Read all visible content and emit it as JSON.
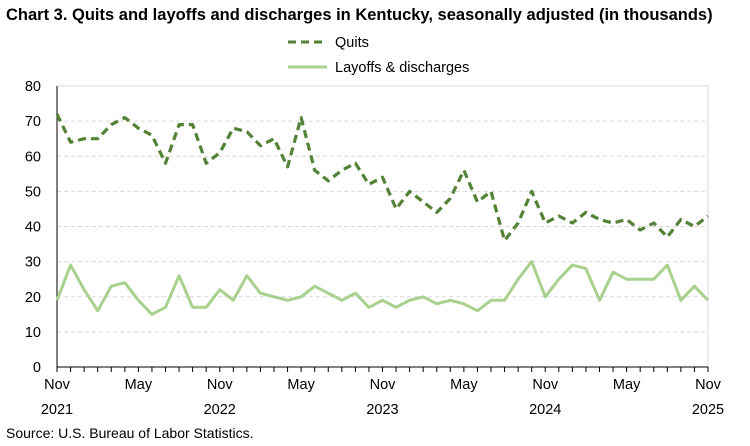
{
  "chart_data": {
    "type": "line",
    "title": "Chart 3. Quits and layoffs and discharges in Kentucky, seasonally adjusted (in thousands)",
    "source": "Source: U.S. Bureau of Labor Statistics.",
    "ylim": [
      0,
      80
    ],
    "yticks": [
      0,
      10,
      20,
      30,
      40,
      50,
      60,
      70,
      80
    ],
    "grid": true,
    "legend_placement": "top-center",
    "x_start": "Nov 2021",
    "x_end": "Nov 2025",
    "xtick_labels": [
      {
        "month": "Nov",
        "year": "2021",
        "index": 0
      },
      {
        "month": "May",
        "year": "",
        "index": 6
      },
      {
        "month": "Nov",
        "year": "2022",
        "index": 12
      },
      {
        "month": "May",
        "year": "",
        "index": 18
      },
      {
        "month": "Nov",
        "year": "2023",
        "index": 24
      },
      {
        "month": "May",
        "year": "",
        "index": 30
      },
      {
        "month": "Nov",
        "year": "2024",
        "index": 36
      },
      {
        "month": "May",
        "year": "",
        "index": 42
      },
      {
        "month": "Nov",
        "year": "2025",
        "index": 48
      }
    ],
    "series": [
      {
        "name": "Quits",
        "color": "#538135",
        "style": "dashed",
        "values": [
          72,
          64,
          65,
          65,
          69,
          71,
          68,
          66,
          58,
          69,
          69,
          58,
          61,
          68,
          67,
          63,
          65,
          57,
          71,
          56,
          53,
          56,
          58,
          52,
          54,
          45,
          50,
          47,
          44,
          48,
          56,
          47,
          50,
          36,
          41,
          50,
          41,
          43,
          41,
          44,
          42,
          41,
          42,
          39,
          41,
          37,
          42,
          40,
          43
        ]
      },
      {
        "name": "Layoffs & discharges",
        "color": "#A9D18E",
        "style": "solid",
        "values": [
          19,
          29,
          22,
          16,
          23,
          24,
          19,
          15,
          17,
          26,
          17,
          17,
          22,
          19,
          26,
          21,
          20,
          19,
          20,
          23,
          21,
          19,
          21,
          17,
          19,
          17,
          19,
          20,
          18,
          19,
          18,
          16,
          19,
          19,
          25,
          30,
          20,
          25,
          29,
          28,
          19,
          27,
          25,
          25,
          25,
          29,
          19,
          23,
          19
        ]
      }
    ]
  }
}
